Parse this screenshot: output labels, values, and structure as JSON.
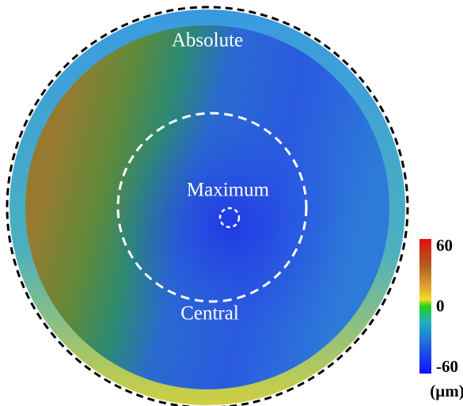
{
  "labels": {
    "top": "Absolute",
    "center": "Maximum",
    "bottom": "Central"
  },
  "colorbar": {
    "lim": [
      -60,
      60
    ],
    "ticks": [
      60,
      0,
      -60
    ],
    "unit": "(μm)"
  }
}
